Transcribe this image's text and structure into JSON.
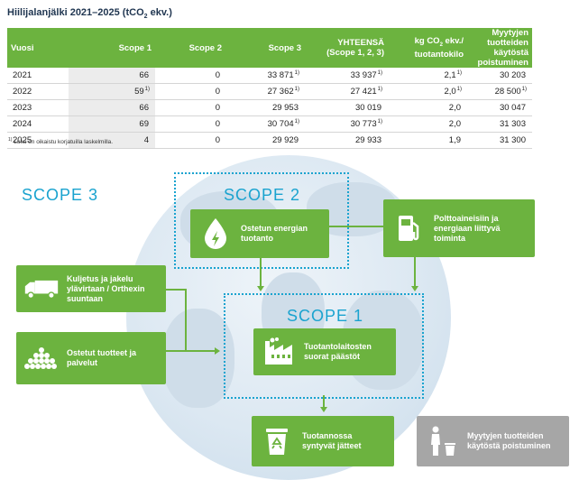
{
  "title": {
    "prefix": "Hiilijalanjälki 2021–2025 (tCO",
    "sub": "2",
    "suffix": " ekv.)"
  },
  "table": {
    "headers": {
      "year": "Vuosi",
      "scope1": "Scope 1",
      "scope2": "Scope 2",
      "scope3": "Scope 3",
      "total_l1": "YHTEENSÄ",
      "total_l2": "(Scope 1, 2, 3)",
      "kg_l1a": "kg CO",
      "kg_sub": "2",
      "kg_l1b": " ekv./",
      "kg_l2": "tuotantokilo",
      "sold_l1": "Myytyjen tuotteiden",
      "sold_l2": "käytöstä poistuminen"
    },
    "rows": [
      {
        "year": "2021",
        "s1": "66",
        "s1n": "",
        "s2": "0",
        "s3": "33 871",
        "s3n": "1)",
        "tot": "33 937",
        "totn": "1)",
        "kg": "2,1",
        "kgn": "1)",
        "sold": "30 203",
        "soldn": ""
      },
      {
        "year": "2022",
        "s1": "59",
        "s1n": "1)",
        "s2": "0",
        "s3": "27 362",
        "s3n": "1)",
        "tot": "27 421",
        "totn": "1)",
        "kg": "2,0",
        "kgn": "1)",
        "sold": "28 500",
        "soldn": "1)"
      },
      {
        "year": "2023",
        "s1": "66",
        "s1n": "",
        "s2": "0",
        "s3": "29 953",
        "s3n": "",
        "tot": "30 019",
        "totn": "",
        "kg": "2,0",
        "kgn": "",
        "sold": "30 047",
        "soldn": ""
      },
      {
        "year": "2024",
        "s1": "69",
        "s1n": "",
        "s2": "0",
        "s3": "30 704",
        "s3n": "1)",
        "tot": "30 773",
        "totn": "1)",
        "kg": "2,0",
        "kgn": "",
        "sold": "31 303",
        "soldn": ""
      },
      {
        "year": "2025",
        "s1": "4",
        "s1n": "",
        "s2": "0",
        "s3": "29 929",
        "s3n": "",
        "tot": "29 933",
        "totn": "",
        "kg": "1,9",
        "kgn": "",
        "sold": "31 300",
        "soldn": ""
      }
    ]
  },
  "note": {
    "mark": "1)",
    "text": " Luku on oikaistu korjatuilla laskelmilla."
  },
  "diagram": {
    "scope3_label": "SCOPE 3",
    "scope2_label": "SCOPE 2",
    "scope1_label": "SCOPE 1",
    "energy_purchase": "Ostetun energian tuotanto",
    "fuel_energy": "Polttoaineisiin ja energiaan liittyvä toiminta",
    "transport": "Kuljetus ja jakelu ylävirtaan / Orthexin suuntaan",
    "purchased_goods": "Ostetut tuotteet ja palvelut",
    "production_emissions": "Tuotantolaitosten suorat päästöt",
    "waste": "Tuotannossa syntyvät jätteet",
    "end_of_life": "Myytyjen tuotteiden käytöstä poistuminen"
  },
  "colors": {
    "green": "#6cb33f",
    "blue": "#1aa3cf",
    "gray": "#a6a6a6",
    "title": "#1f3550"
  }
}
